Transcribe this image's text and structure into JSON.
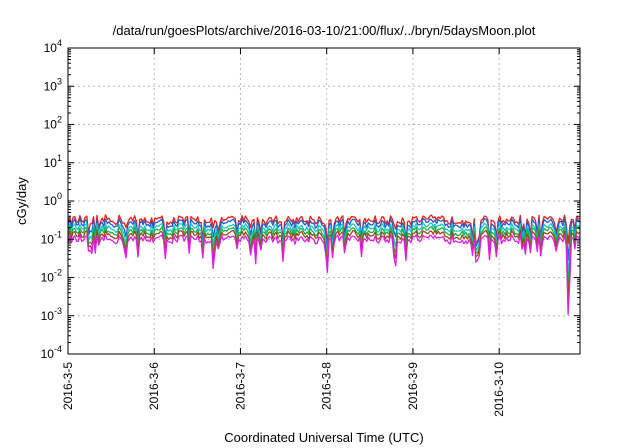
{
  "chart_data": {
    "type": "line",
    "title": "/data/run/goesPlots/archive/2016-03-10/21:00/flux/../bryn/5daysMoon.plot",
    "xlabel": "Coordinated Universal Time (UTC)",
    "ylabel": "cGy/day",
    "y_scale": "log",
    "ylim": [
      0.0001,
      10000
    ],
    "xlim": [
      "2016-03-05T00:00",
      "2016-03-10T22:30"
    ],
    "grid": true,
    "legend": "none",
    "x_ticks": [
      "2016-3-5",
      "2016-3-6",
      "2016-3-7",
      "2016-3-8",
      "2016-3-9",
      "2016-3-10"
    ],
    "y_ticks": [
      {
        "base": "10",
        "exp": "-4"
      },
      {
        "base": "10",
        "exp": "-3"
      },
      {
        "base": "10",
        "exp": "-2"
      },
      {
        "base": "10",
        "exp": "-1"
      },
      {
        "base": "10",
        "exp": "0"
      },
      {
        "base": "10",
        "exp": "1"
      },
      {
        "base": "10",
        "exp": "2"
      },
      {
        "base": "10",
        "exp": "3"
      },
      {
        "base": "10",
        "exp": "4"
      }
    ],
    "series": [
      {
        "color": "#e8201c",
        "baseline": 0.32
      },
      {
        "color": "#1f5bd6",
        "baseline": 0.26
      },
      {
        "color": "#16c7c7",
        "baseline": 0.2
      },
      {
        "color": "#18b24a",
        "baseline": 0.16
      },
      {
        "color": "#9a4a16",
        "baseline": 0.13
      },
      {
        "color": "#e020e0",
        "baseline": 0.1
      }
    ],
    "dips": [
      {
        "x": "2016-03-05T06:30",
        "y": 0.035
      },
      {
        "x": "2016-03-05T16:00",
        "y": 0.028
      },
      {
        "x": "2016-03-06T16:30",
        "y": 0.012
      },
      {
        "x": "2016-03-07T03:00",
        "y": 0.035
      },
      {
        "x": "2016-03-08T00:00",
        "y": 0.03
      },
      {
        "x": "2016-03-08T19:00",
        "y": 0.013
      },
      {
        "x": "2016-03-10T19:20",
        "y": 0.0006
      }
    ]
  }
}
